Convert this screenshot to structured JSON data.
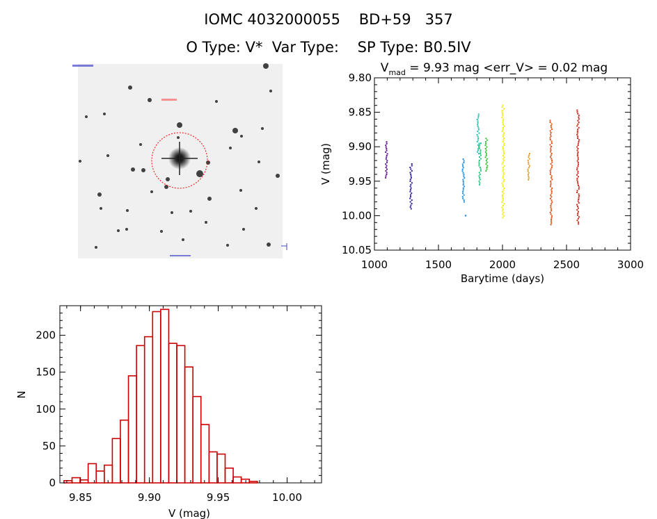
{
  "header": {
    "title_line1": "IOMC 4032000055    BD+59   357",
    "title_line2": "O Type: V*  Var Type:    SP Type: B0.5IV"
  },
  "image_panel": {
    "marker_color": "#ff0000"
  },
  "chart_data": [
    {
      "type": "scatter",
      "title_main": "V",
      "title_sub": "mad",
      "title_rest": " = 9.93 mag <err_V> = 0.02 mag",
      "xlabel": "Barytime (days)",
      "ylabel": "V (mag)",
      "xlim": [
        1000,
        3000
      ],
      "ylim": [
        10.05,
        9.8
      ],
      "y_inverted": true,
      "xticks": [
        1000,
        1500,
        2000,
        2500,
        3000
      ],
      "yticks": [
        9.8,
        9.85,
        9.9,
        9.95,
        10.0,
        10.05
      ],
      "ytick_labels": [
        "9.80",
        "9.85",
        "9.90",
        "9.95",
        "10.00",
        "10.05"
      ],
      "groups": [
        {
          "x": 1095,
          "ymin": 9.893,
          "ymax": 9.945,
          "color": "#5a0f8a"
        },
        {
          "x": 1285,
          "ymin": 9.925,
          "ymax": 9.99,
          "color": "#2a1aa0"
        },
        {
          "x": 1695,
          "ymin": 9.918,
          "ymax": 9.98,
          "color": "#1f8fe0"
        },
        {
          "x": 1705,
          "ymin": 10.0,
          "ymax": 10.0,
          "color": "#1f8fe0"
        },
        {
          "x": 1810,
          "ymin": 9.853,
          "ymax": 9.91,
          "color": "#20c0b0"
        },
        {
          "x": 1825,
          "ymin": 9.895,
          "ymax": 9.955,
          "color": "#20c080"
        },
        {
          "x": 1875,
          "ymin": 9.888,
          "ymax": 9.935,
          "color": "#30c030"
        },
        {
          "x": 2005,
          "ymin": 9.84,
          "ymax": 10.003,
          "color": "#f0f000"
        },
        {
          "x": 2205,
          "ymin": 9.91,
          "ymax": 9.948,
          "color": "#e09a20"
        },
        {
          "x": 2380,
          "ymin": 9.862,
          "ymax": 10.013,
          "color": "#e05010"
        },
        {
          "x": 2590,
          "ymin": 9.847,
          "ymax": 10.012,
          "color": "#cc2010"
        }
      ]
    },
    {
      "type": "bar",
      "subtype": "histogram",
      "xlabel": "V (mag)",
      "ylabel": "N",
      "xlim": [
        9.835,
        10.025
      ],
      "ylim": [
        0,
        240
      ],
      "xticks": [
        9.85,
        9.9,
        9.95,
        10.0
      ],
      "xtick_labels": [
        "9.85",
        "9.90",
        "9.95",
        "10.00"
      ],
      "yticks": [
        0,
        50,
        100,
        150,
        200
      ],
      "bin_width": 0.00585,
      "bins_left_edge": 9.838,
      "values": [
        3,
        7,
        4,
        26,
        16,
        24,
        60,
        85,
        145,
        186,
        198,
        232,
        235,
        189,
        186,
        157,
        117,
        79,
        42,
        39,
        20,
        8,
        5,
        2
      ],
      "color": "#cc0000"
    }
  ]
}
